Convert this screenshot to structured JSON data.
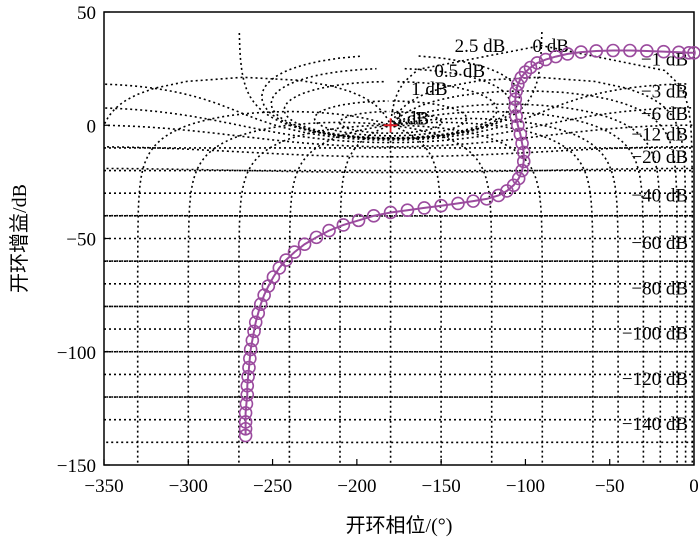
{
  "chart_data": {
    "type": "line",
    "title": "",
    "xlabel": "开环相位/(°)",
    "ylabel": "开环增益/dB",
    "xlim": [
      -350,
      0
    ],
    "ylim": [
      -150,
      50
    ],
    "x_ticks": [
      -350,
      -300,
      -250,
      -200,
      -150,
      -100,
      -50,
      0
    ],
    "y_ticks": [
      -150,
      -100,
      -50,
      0,
      50
    ],
    "x_tick_labels": [
      "−350",
      "−300",
      "−250",
      "−200",
      "−150",
      "−100",
      "−50",
      "0"
    ],
    "y_tick_labels": [
      "−150",
      "−100",
      "−50",
      "0",
      "50"
    ],
    "grid": "Nichols chart (dotted)",
    "critical_point": {
      "x": -180,
      "y": 0,
      "marker": "+",
      "color": "#e8202a"
    },
    "m_circle_labels": [
      {
        "text": "2.5 dB",
        "x": -127,
        "y": 35
      },
      {
        "text": "0 dB",
        "x": -85,
        "y": 35
      },
      {
        "text": "0.5 dB",
        "x": -139,
        "y": 24
      },
      {
        "text": "1 dB",
        "x": -157,
        "y": 16
      },
      {
        "text": "3 dB",
        "x": -168,
        "y": 3
      },
      {
        "text": "−1 dB",
        "x": -16,
        "y": 29
      },
      {
        "text": "−3 dB",
        "x": -16,
        "y": 15
      },
      {
        "text": "−6 dB",
        "x": -16,
        "y": 5
      },
      {
        "text": "−12 dB",
        "x": -16,
        "y": -4
      },
      {
        "text": "−20 dB",
        "x": -16,
        "y": -14
      },
      {
        "text": "−40 dB",
        "x": -16,
        "y": -31
      },
      {
        "text": "−60 dB",
        "x": -16,
        "y": -52
      },
      {
        "text": "−80 dB",
        "x": -16,
        "y": -72
      },
      {
        "text": "−100 dB",
        "x": -16,
        "y": -92
      },
      {
        "text": "−120 dB",
        "x": -16,
        "y": -112
      },
      {
        "text": "−140 dB",
        "x": -16,
        "y": -132
      }
    ],
    "series": [
      {
        "color": "#9b4b9e",
        "marker": "circle",
        "x": [
          -266,
          -266,
          -266,
          -266,
          -265.5,
          -265,
          -265,
          -264.5,
          -264,
          -263.5,
          -263,
          -262,
          -261,
          -260,
          -258.5,
          -257,
          -255,
          -252.5,
          -249.5,
          -246,
          -242,
          -237,
          -231,
          -224,
          -216.5,
          -208,
          -199,
          -190,
          -180,
          -170,
          -160,
          -150,
          -140,
          -131,
          -123,
          -116,
          -111,
          -107,
          -104,
          -102,
          -101,
          -101,
          -102,
          -103,
          -104.5,
          -105.5,
          -106,
          -106,
          -105.5,
          -104.5,
          -102.5,
          -100,
          -97,
          -93,
          -88,
          -82,
          -75,
          -67,
          -58,
          -48,
          -38,
          -28,
          -18,
          -9,
          -3,
          0
        ],
        "y": [
          -137,
          -134,
          -131,
          -127,
          -123,
          -119,
          -115,
          -111,
          -107,
          -103,
          -99,
          -95,
          -91,
          -87,
          -83,
          -79,
          -75,
          -71,
          -67,
          -63,
          -59.5,
          -56,
          -52.5,
          -49.5,
          -46.5,
          -44,
          -42,
          -40,
          -38.5,
          -37.5,
          -36.5,
          -35.5,
          -34.5,
          -33.5,
          -32.5,
          -31,
          -29,
          -26.5,
          -23.5,
          -20,
          -16,
          -12,
          -8,
          -4,
          0,
          4,
          8,
          11.5,
          15,
          18,
          21,
          23.5,
          25.5,
          27.5,
          29,
          30.3,
          31.5,
          32.3,
          32.8,
          33,
          33,
          32.8,
          32.5,
          32.2,
          32,
          32
        ]
      }
    ]
  }
}
